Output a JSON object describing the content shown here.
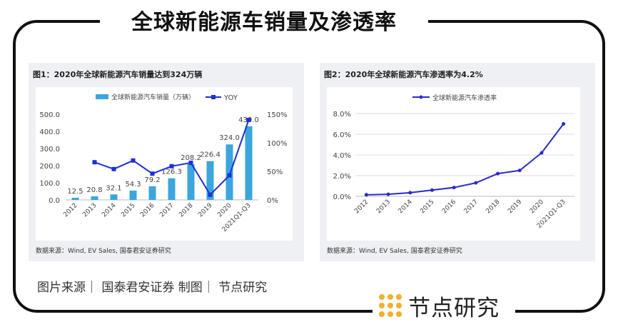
{
  "header": {
    "title": "全球新能源车销量及渗透率"
  },
  "caption": "图片来源｜ 国泰君安证券   制图｜ 节点研究",
  "logo": {
    "text": "节点研究",
    "color": "#f0b030"
  },
  "chart_data": [
    {
      "type": "bar+line",
      "title": "图1：2020年全球新能源汽车销量达到324万辆",
      "source": "数据来源：Wind, EV Sales, 国泰君安证券研究",
      "categories": [
        "2012",
        "2013",
        "2014",
        "2015",
        "2016",
        "2017",
        "2018",
        "2019",
        "2020",
        "2021Q1-Q3"
      ],
      "series": [
        {
          "name": "全球新能源汽车销量（万辆）",
          "type": "bar",
          "axis": "left",
          "color": "#3aa6dd",
          "values": [
            12.5,
            20.8,
            32.1,
            54.3,
            79.2,
            126.3,
            208.2,
            226.4,
            324.0,
            430.0
          ],
          "labels": [
            "12.5",
            "20.8",
            "32.1",
            "54.3",
            "79.2",
            "126.3",
            "208.2",
            "226.4",
            "324.0",
            "430.0"
          ]
        },
        {
          "name": "YOY",
          "type": "line",
          "axis": "right",
          "color": "#1f2fd6",
          "values": [
            null,
            66,
            54,
            69,
            46,
            59,
            65,
            9,
            43,
            140
          ]
        }
      ],
      "yleft": {
        "ylim": [
          0,
          500
        ],
        "ticks": [
          "0.0",
          "100.0",
          "200.0",
          "300.0",
          "400.0",
          "500.0"
        ]
      },
      "yright": {
        "ylim": [
          0,
          150
        ],
        "ticks": [
          "0%",
          "50%",
          "100%",
          "150%"
        ]
      },
      "legend": "top",
      "grid": false
    },
    {
      "type": "line",
      "title": "图2：2020年全球新能源汽车渗透率为4.2%",
      "source": "数据来源：Wind, EV Sales, 国泰君安证券研究",
      "categories": [
        "2012",
        "2013",
        "2014",
        "2015",
        "2016",
        "2017",
        "2018",
        "2019",
        "2020",
        "2021Q1-Q3"
      ],
      "series": [
        {
          "name": "全球新能源汽车渗透率",
          "color": "#2a2ad0",
          "values": [
            0.15,
            0.2,
            0.35,
            0.6,
            0.85,
            1.3,
            2.2,
            2.5,
            4.2,
            7.0
          ]
        }
      ],
      "ylim": [
        0,
        8
      ],
      "ticks": [
        "0.0%",
        "2.0%",
        "4.0%",
        "6.0%",
        "8.0%"
      ],
      "legend": "top",
      "grid": true
    }
  ]
}
